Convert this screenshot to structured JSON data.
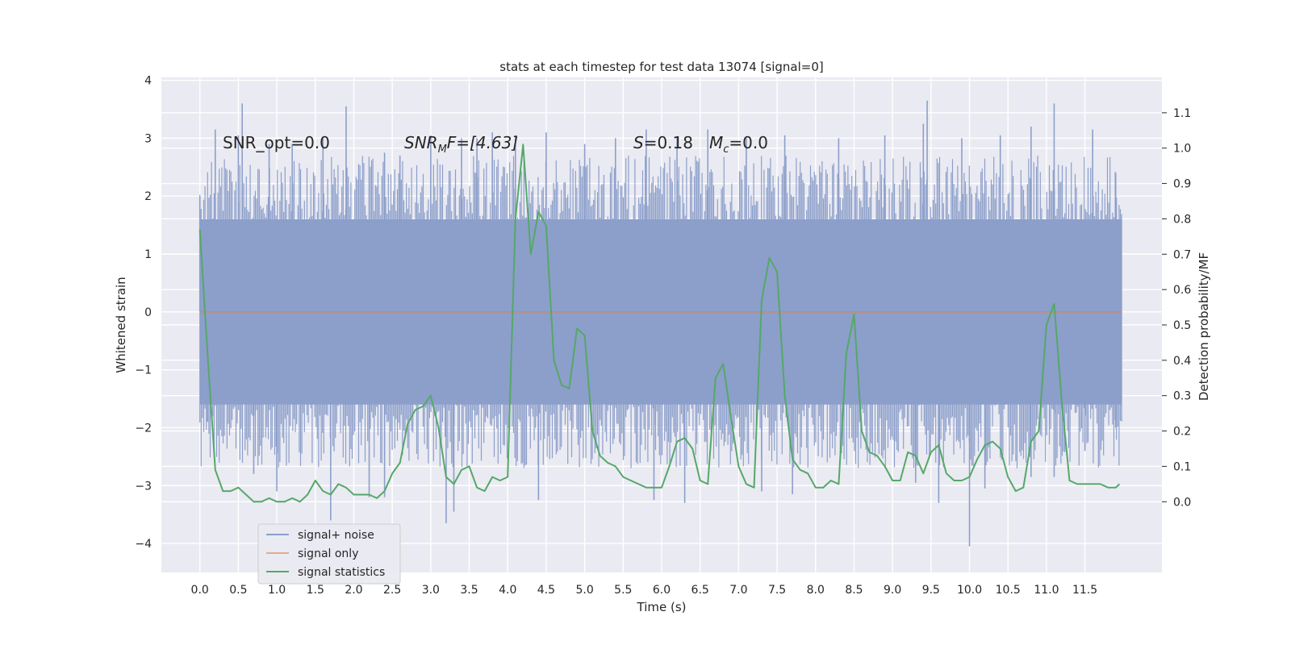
{
  "chart_data": {
    "type": "line",
    "title": "stats at each timestep for test data 13074 [signal=0]",
    "xlabel": "Time (s)",
    "ylabel": "Whitened strain",
    "y2label": "Detection probability/MF",
    "xlim": [
      -0.5,
      12.5
    ],
    "ylim": [
      -4.5,
      4.05
    ],
    "y2lim": [
      -0.2,
      1.2
    ],
    "x_ticks": [
      "0.0",
      "0.5",
      "1.0",
      "1.5",
      "2.0",
      "2.5",
      "3.0",
      "3.5",
      "4.0",
      "4.5",
      "5.0",
      "5.5",
      "6.0",
      "6.5",
      "7.0",
      "7.5",
      "8.0",
      "8.5",
      "9.0",
      "9.5",
      "10.0",
      "10.5",
      "11.0",
      "11.5"
    ],
    "y_ticks": [
      4,
      3,
      2,
      1,
      0,
      -1,
      -2,
      -3,
      -4
    ],
    "y2_ticks": [
      "0.0",
      "0.1",
      "0.2",
      "0.3",
      "0.4",
      "0.5",
      "0.6",
      "0.7",
      "0.8",
      "0.9",
      "1.0",
      "1.1"
    ],
    "grid": true,
    "legend_position": "lower-left",
    "annotations": {
      "snr_opt": "SNR_opt=0.0",
      "snr_mf_main": "SNR",
      "snr_mf_sub": "M",
      "snr_mf_rest": "F=[4.63]",
      "s_main": "S",
      "s_rest": "=0.18",
      "mc_main": "M",
      "mc_sub": "c",
      "mc_rest": "=0.0"
    },
    "series": [
      {
        "name": "signal+ noise",
        "color": "#8c9fca",
        "x_range": [
          0.0,
          11.98
        ],
        "envelope_upper": 1.6,
        "envelope_lower": -1.6,
        "peaks": [
          [
            0.0,
            2.0
          ],
          [
            0.2,
            3.15
          ],
          [
            0.5,
            3.05
          ],
          [
            0.55,
            3.6
          ],
          [
            0.9,
            2.9
          ],
          [
            1.2,
            2.9
          ],
          [
            1.6,
            3.0
          ],
          [
            1.9,
            3.55
          ],
          [
            2.4,
            2.75
          ],
          [
            2.6,
            2.7
          ],
          [
            3.0,
            3.05
          ],
          [
            3.4,
            3.0
          ],
          [
            3.6,
            3.0
          ],
          [
            3.8,
            3.1
          ],
          [
            4.1,
            3.05
          ],
          [
            4.5,
            3.1
          ],
          [
            5.0,
            2.9
          ],
          [
            5.4,
            3.0
          ],
          [
            5.8,
            3.15
          ],
          [
            6.2,
            3.0
          ],
          [
            6.6,
            3.15
          ],
          [
            7.1,
            3.0
          ],
          [
            7.6,
            3.05
          ],
          [
            8.3,
            3.0
          ],
          [
            8.9,
            3.05
          ],
          [
            9.4,
            3.25
          ],
          [
            9.45,
            3.65
          ],
          [
            9.9,
            3.0
          ],
          [
            10.4,
            3.05
          ],
          [
            10.8,
            3.2
          ],
          [
            11.1,
            3.6
          ],
          [
            11.6,
            3.15
          ],
          [
            11.9,
            2.4
          ],
          [
            0.1,
            -1.9
          ],
          [
            0.7,
            -2.8
          ],
          [
            1.0,
            -3.1
          ],
          [
            1.7,
            -3.6
          ],
          [
            2.2,
            -3.2
          ],
          [
            2.4,
            -3.2
          ],
          [
            3.2,
            -3.65
          ],
          [
            3.3,
            -3.45
          ],
          [
            4.4,
            -3.25
          ],
          [
            5.9,
            -3.25
          ],
          [
            6.3,
            -3.3
          ],
          [
            7.3,
            -3.1
          ],
          [
            7.7,
            -3.15
          ],
          [
            9.3,
            -2.95
          ],
          [
            9.6,
            -3.3
          ],
          [
            10.0,
            -4.05
          ],
          [
            10.2,
            -3.05
          ],
          [
            10.8,
            -2.85
          ],
          [
            11.1,
            -2.85
          ],
          [
            11.5,
            -2.4
          ],
          [
            11.9,
            -2.0
          ]
        ]
      },
      {
        "name": "signal only",
        "color": "#dd8452",
        "x": [
          0.0,
          11.98
        ],
        "y": [
          0.0,
          0.0
        ]
      },
      {
        "name": "signal statistics",
        "color": "#55a868",
        "axis": "y2",
        "x": [
          0.0,
          0.1,
          0.2,
          0.3,
          0.4,
          0.5,
          0.6,
          0.7,
          0.8,
          0.9,
          1.0,
          1.1,
          1.2,
          1.3,
          1.4,
          1.5,
          1.6,
          1.7,
          1.8,
          1.9,
          2.0,
          2.1,
          2.2,
          2.3,
          2.4,
          2.5,
          2.6,
          2.7,
          2.8,
          2.9,
          3.0,
          3.1,
          3.2,
          3.3,
          3.4,
          3.5,
          3.6,
          3.7,
          3.8,
          3.9,
          4.0,
          4.1,
          4.2,
          4.3,
          4.4,
          4.5,
          4.6,
          4.7,
          4.8,
          4.9,
          5.0,
          5.1,
          5.2,
          5.3,
          5.4,
          5.5,
          5.6,
          5.7,
          5.8,
          5.9,
          6.0,
          6.1,
          6.2,
          6.3,
          6.4,
          6.5,
          6.6,
          6.7,
          6.8,
          6.9,
          7.0,
          7.1,
          7.2,
          7.3,
          7.4,
          7.5,
          7.6,
          7.7,
          7.8,
          7.9,
          8.0,
          8.1,
          8.2,
          8.3,
          8.4,
          8.5,
          8.6,
          8.7,
          8.8,
          8.9,
          9.0,
          9.1,
          9.2,
          9.3,
          9.4,
          9.5,
          9.6,
          9.7,
          9.8,
          9.9,
          10.0,
          10.1,
          10.2,
          10.3,
          10.4,
          10.5,
          10.6,
          10.7,
          10.8,
          10.9,
          11.0,
          11.1,
          11.2,
          11.3,
          11.4,
          11.5,
          11.6,
          11.7,
          11.8,
          11.9,
          11.95
        ],
        "y": [
          0.77,
          0.42,
          0.09,
          0.03,
          0.03,
          0.04,
          0.02,
          0.0,
          0.0,
          0.01,
          0.0,
          0.0,
          0.01,
          0.0,
          0.02,
          0.06,
          0.03,
          0.02,
          0.05,
          0.04,
          0.02,
          0.02,
          0.02,
          0.01,
          0.03,
          0.08,
          0.11,
          0.22,
          0.26,
          0.27,
          0.3,
          0.21,
          0.07,
          0.05,
          0.09,
          0.1,
          0.04,
          0.03,
          0.07,
          0.06,
          0.07,
          0.8,
          1.01,
          0.7,
          0.82,
          0.78,
          0.4,
          0.33,
          0.32,
          0.49,
          0.47,
          0.2,
          0.13,
          0.11,
          0.1,
          0.07,
          0.06,
          0.05,
          0.04,
          0.04,
          0.04,
          0.1,
          0.17,
          0.18,
          0.15,
          0.06,
          0.05,
          0.35,
          0.39,
          0.24,
          0.1,
          0.05,
          0.04,
          0.57,
          0.69,
          0.65,
          0.3,
          0.12,
          0.09,
          0.08,
          0.04,
          0.04,
          0.06,
          0.05,
          0.42,
          0.53,
          0.2,
          0.14,
          0.13,
          0.1,
          0.06,
          0.06,
          0.14,
          0.13,
          0.08,
          0.14,
          0.16,
          0.08,
          0.06,
          0.06,
          0.07,
          0.12,
          0.16,
          0.17,
          0.15,
          0.07,
          0.03,
          0.04,
          0.17,
          0.2,
          0.5,
          0.56,
          0.28,
          0.06,
          0.05,
          0.05,
          0.05,
          0.05,
          0.04,
          0.04,
          0.05
        ]
      }
    ]
  }
}
